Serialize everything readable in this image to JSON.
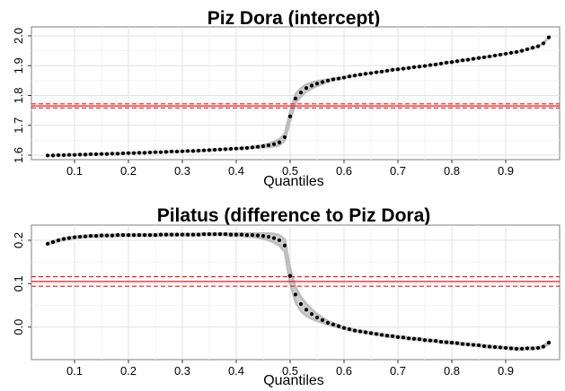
{
  "chart_data": [
    {
      "type": "scatter",
      "title": "Piz Dora (intercept)",
      "xlabel": "Quantiles",
      "ylabel": "",
      "xlim": [
        0.02,
        1.0
      ],
      "ylim": [
        1.585,
        2.03
      ],
      "xticks": [
        0.1,
        0.2,
        0.3,
        0.4,
        0.5,
        0.6,
        0.7,
        0.8,
        0.9
      ],
      "xticklabels": [
        "0.1",
        "0.2",
        "0.3",
        "0.4",
        "0.5",
        "0.6",
        "0.7",
        "0.8",
        "0.9"
      ],
      "yticks": [
        1.6,
        1.7,
        1.8,
        1.9,
        2.0
      ],
      "yticklabels": [
        "1.6",
        "1.7",
        "1.8",
        "1.9",
        "2.0"
      ],
      "grid": true,
      "reference_lines": {
        "solid": 1.765,
        "dashed": [
          1.758,
          1.772
        ],
        "color": "#e41a1c"
      },
      "series": [
        {
          "color": "#000000",
          "band_color": "#bdbdbd",
          "x": [
            0.05,
            0.06,
            0.07,
            0.08,
            0.09,
            0.1,
            0.11,
            0.12,
            0.13,
            0.14,
            0.15,
            0.16,
            0.17,
            0.18,
            0.19,
            0.2,
            0.21,
            0.22,
            0.23,
            0.24,
            0.25,
            0.26,
            0.27,
            0.28,
            0.29,
            0.3,
            0.31,
            0.32,
            0.33,
            0.34,
            0.35,
            0.36,
            0.37,
            0.38,
            0.39,
            0.4,
            0.41,
            0.42,
            0.43,
            0.44,
            0.45,
            0.46,
            0.47,
            0.48,
            0.49,
            0.5,
            0.51,
            0.52,
            0.53,
            0.54,
            0.55,
            0.56,
            0.57,
            0.58,
            0.59,
            0.6,
            0.61,
            0.62,
            0.63,
            0.64,
            0.65,
            0.66,
            0.67,
            0.68,
            0.69,
            0.7,
            0.71,
            0.72,
            0.73,
            0.74,
            0.75,
            0.76,
            0.77,
            0.78,
            0.79,
            0.8,
            0.81,
            0.82,
            0.83,
            0.84,
            0.85,
            0.86,
            0.87,
            0.88,
            0.89,
            0.9,
            0.91,
            0.92,
            0.93,
            0.94,
            0.95,
            0.96,
            0.97,
            0.98
          ],
          "y": [
            1.599,
            1.599,
            1.6,
            1.6,
            1.601,
            1.601,
            1.602,
            1.602,
            1.603,
            1.603,
            1.604,
            1.604,
            1.605,
            1.605,
            1.606,
            1.607,
            1.607,
            1.608,
            1.608,
            1.609,
            1.61,
            1.61,
            1.611,
            1.612,
            1.612,
            1.613,
            1.614,
            1.614,
            1.615,
            1.616,
            1.617,
            1.618,
            1.619,
            1.62,
            1.621,
            1.622,
            1.623,
            1.624,
            1.626,
            1.628,
            1.63,
            1.633,
            1.637,
            1.643,
            1.66,
            1.73,
            1.79,
            1.81,
            1.825,
            1.833,
            1.84,
            1.845,
            1.85,
            1.854,
            1.857,
            1.86,
            1.864,
            1.867,
            1.87,
            1.873,
            1.875,
            1.878,
            1.88,
            1.883,
            1.886,
            1.888,
            1.89,
            1.892,
            1.895,
            1.897,
            1.899,
            1.902,
            1.904,
            1.907,
            1.91,
            1.912,
            1.915,
            1.918,
            1.92,
            1.923,
            1.926,
            1.928,
            1.931,
            1.934,
            1.937,
            1.94,
            1.943,
            1.946,
            1.95,
            1.955,
            1.96,
            1.965,
            1.975,
            1.995
          ],
          "band_half_width": [
            0.001,
            0.001,
            0.001,
            0.001,
            0.001,
            0.001,
            0.001,
            0.001,
            0.001,
            0.001,
            0.001,
            0.001,
            0.001,
            0.001,
            0.001,
            0.001,
            0.001,
            0.001,
            0.001,
            0.001,
            0.001,
            0.001,
            0.001,
            0.001,
            0.001,
            0.001,
            0.001,
            0.001,
            0.001,
            0.001,
            0.001,
            0.001,
            0.001,
            0.001,
            0.001,
            0.001,
            0.002,
            0.002,
            0.002,
            0.003,
            0.004,
            0.006,
            0.008,
            0.01,
            0.012,
            0.015,
            0.015,
            0.014,
            0.012,
            0.01,
            0.008,
            0.006,
            0.004,
            0.003,
            0.002,
            0.002,
            0.001,
            0.001,
            0.001,
            0.001,
            0.001,
            0.001,
            0.001,
            0.001,
            0.001,
            0.001,
            0.001,
            0.001,
            0.001,
            0.001,
            0.001,
            0.001,
            0.001,
            0.001,
            0.001,
            0.001,
            0.001,
            0.001,
            0.001,
            0.001,
            0.001,
            0.001,
            0.001,
            0.001,
            0.001,
            0.001,
            0.001,
            0.001,
            0.001,
            0.001,
            0.001,
            0.001,
            0.001,
            0.001
          ]
        }
      ]
    },
    {
      "type": "scatter",
      "title": "Pilatus (difference to Piz Dora)",
      "xlabel": "Quantiles",
      "ylabel": "",
      "xlim": [
        0.02,
        1.0
      ],
      "ylim": [
        -0.075,
        0.235
      ],
      "xticks": [
        0.1,
        0.2,
        0.3,
        0.4,
        0.5,
        0.6,
        0.7,
        0.8,
        0.9
      ],
      "xticklabels": [
        "0.1",
        "0.2",
        "0.3",
        "0.4",
        "0.5",
        "0.6",
        "0.7",
        "0.8",
        "0.9"
      ],
      "yticks": [
        0.0,
        0.1,
        0.2
      ],
      "yticklabels": [
        "0.0",
        "0.1",
        "0.2"
      ],
      "grid": true,
      "reference_lines": {
        "solid": 0.105,
        "dashed": [
          0.094,
          0.116
        ],
        "color": "#e41a1c"
      },
      "series": [
        {
          "color": "#000000",
          "band_color": "#bdbdbd",
          "x": [
            0.05,
            0.06,
            0.07,
            0.08,
            0.09,
            0.1,
            0.11,
            0.12,
            0.13,
            0.14,
            0.15,
            0.16,
            0.17,
            0.18,
            0.19,
            0.2,
            0.21,
            0.22,
            0.23,
            0.24,
            0.25,
            0.26,
            0.27,
            0.28,
            0.29,
            0.3,
            0.31,
            0.32,
            0.33,
            0.34,
            0.35,
            0.36,
            0.37,
            0.38,
            0.39,
            0.4,
            0.41,
            0.42,
            0.43,
            0.44,
            0.45,
            0.46,
            0.47,
            0.48,
            0.49,
            0.5,
            0.51,
            0.52,
            0.53,
            0.54,
            0.55,
            0.56,
            0.57,
            0.58,
            0.59,
            0.6,
            0.61,
            0.62,
            0.63,
            0.64,
            0.65,
            0.66,
            0.67,
            0.68,
            0.69,
            0.7,
            0.71,
            0.72,
            0.73,
            0.74,
            0.75,
            0.76,
            0.77,
            0.78,
            0.79,
            0.8,
            0.81,
            0.82,
            0.83,
            0.84,
            0.85,
            0.86,
            0.87,
            0.88,
            0.89,
            0.9,
            0.91,
            0.92,
            0.93,
            0.94,
            0.95,
            0.96,
            0.97,
            0.98
          ],
          "y": [
            0.192,
            0.196,
            0.2,
            0.203,
            0.205,
            0.207,
            0.208,
            0.209,
            0.21,
            0.21,
            0.211,
            0.211,
            0.211,
            0.212,
            0.212,
            0.212,
            0.212,
            0.212,
            0.212,
            0.212,
            0.212,
            0.213,
            0.213,
            0.213,
            0.213,
            0.213,
            0.213,
            0.213,
            0.213,
            0.214,
            0.214,
            0.214,
            0.214,
            0.214,
            0.213,
            0.213,
            0.213,
            0.212,
            0.212,
            0.211,
            0.21,
            0.208,
            0.205,
            0.2,
            0.188,
            0.118,
            0.075,
            0.053,
            0.04,
            0.03,
            0.022,
            0.016,
            0.01,
            0.006,
            0.002,
            -0.002,
            -0.005,
            -0.008,
            -0.01,
            -0.012,
            -0.014,
            -0.016,
            -0.018,
            -0.02,
            -0.021,
            -0.023,
            -0.024,
            -0.026,
            -0.027,
            -0.028,
            -0.03,
            -0.031,
            -0.032,
            -0.034,
            -0.035,
            -0.036,
            -0.037,
            -0.039,
            -0.04,
            -0.041,
            -0.042,
            -0.044,
            -0.045,
            -0.046,
            -0.047,
            -0.048,
            -0.049,
            -0.05,
            -0.05,
            -0.049,
            -0.049,
            -0.048,
            -0.045,
            -0.036
          ],
          "band_half_width": [
            0.002,
            0.002,
            0.002,
            0.002,
            0.002,
            0.002,
            0.002,
            0.002,
            0.002,
            0.002,
            0.002,
            0.002,
            0.002,
            0.002,
            0.002,
            0.002,
            0.002,
            0.002,
            0.002,
            0.002,
            0.002,
            0.002,
            0.002,
            0.002,
            0.002,
            0.002,
            0.002,
            0.002,
            0.002,
            0.002,
            0.002,
            0.002,
            0.002,
            0.002,
            0.003,
            0.003,
            0.003,
            0.004,
            0.004,
            0.005,
            0.006,
            0.008,
            0.01,
            0.012,
            0.015,
            0.018,
            0.018,
            0.016,
            0.014,
            0.011,
            0.008,
            0.006,
            0.004,
            0.003,
            0.003,
            0.002,
            0.002,
            0.002,
            0.002,
            0.002,
            0.002,
            0.002,
            0.002,
            0.002,
            0.002,
            0.002,
            0.002,
            0.002,
            0.002,
            0.002,
            0.002,
            0.002,
            0.002,
            0.002,
            0.002,
            0.002,
            0.002,
            0.002,
            0.002,
            0.002,
            0.002,
            0.002,
            0.002,
            0.002,
            0.002,
            0.002,
            0.002,
            0.002,
            0.002,
            0.002,
            0.002,
            0.002,
            0.002,
            0.003
          ]
        }
      ]
    }
  ]
}
